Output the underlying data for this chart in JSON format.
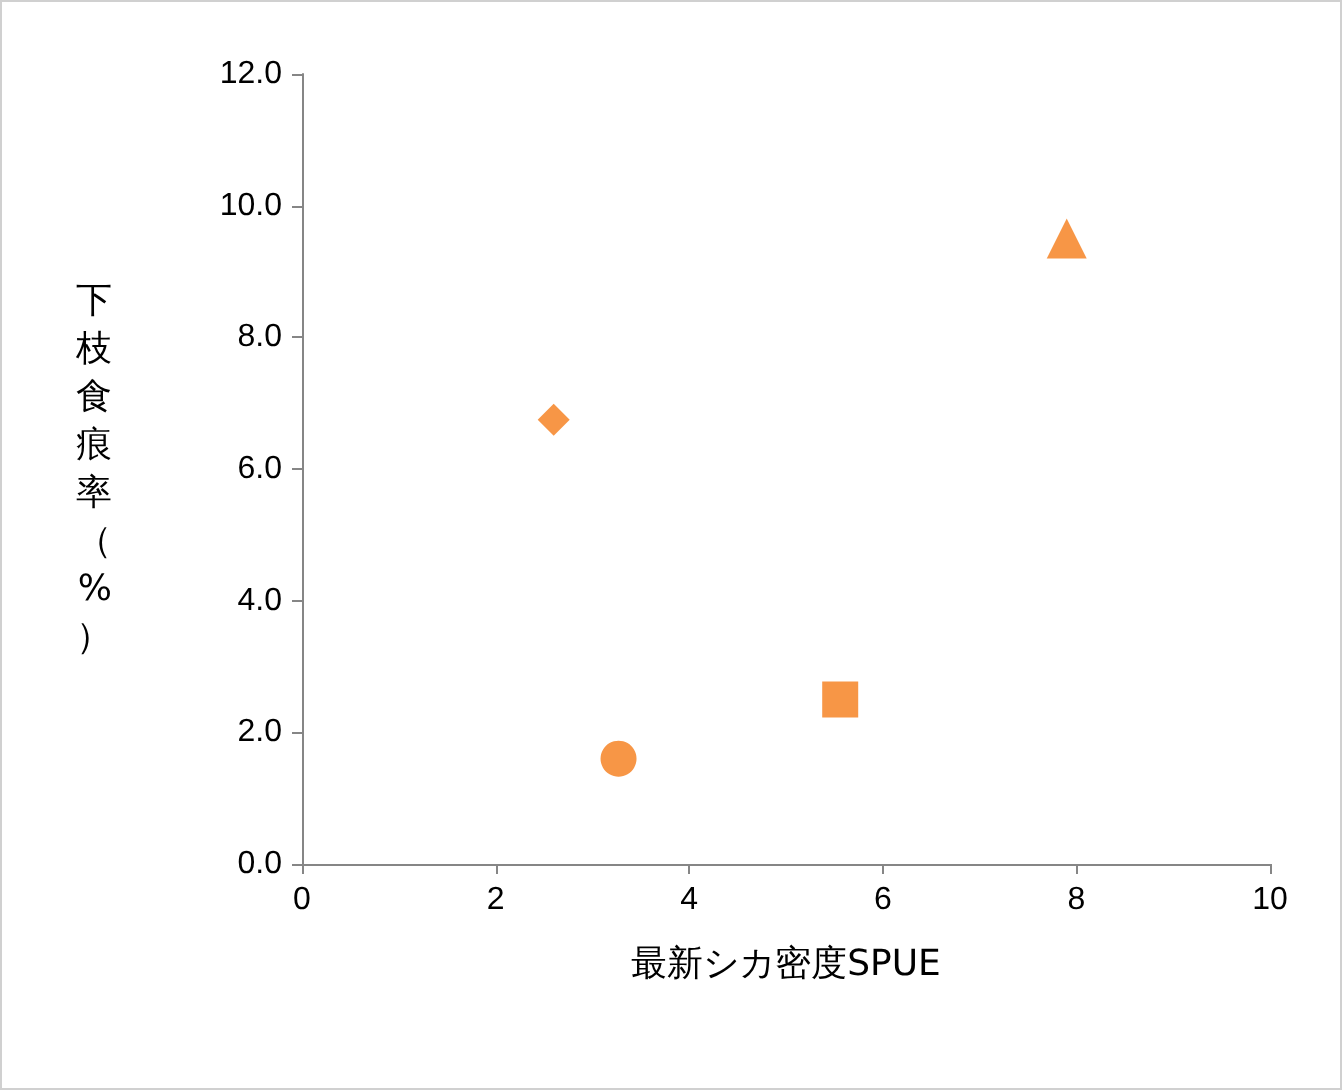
{
  "chart_data": {
    "type": "scatter",
    "xlabel": "最新シカ密度SPUE",
    "ylabel": "下枝食痕率（%）",
    "series": [
      {
        "color": "#f79646",
        "marker": "diamond",
        "x": [
          2.6
        ],
        "values": [
          6.75
        ]
      },
      {
        "color": "#f79646",
        "marker": "circle",
        "x": [
          3.27
        ],
        "values": [
          1.6
        ]
      },
      {
        "color": "#f79646",
        "marker": "square",
        "x": [
          5.56
        ],
        "values": [
          2.5
        ]
      },
      {
        "color": "#f79646",
        "marker": "triangle",
        "x": [
          7.9
        ],
        "values": [
          9.5
        ]
      }
    ],
    "xlim": [
      0,
      10
    ],
    "xticks": [
      0,
      2,
      4,
      6,
      8,
      10
    ],
    "ylim": [
      0,
      12
    ],
    "yticks": [
      {
        "value": 0,
        "label": "0.0"
      },
      {
        "value": 2,
        "label": "2.0"
      },
      {
        "value": 4,
        "label": "4.0"
      },
      {
        "value": 6,
        "label": "6.0"
      },
      {
        "value": 8,
        "label": "8.0"
      },
      {
        "value": 10,
        "label": "10.0"
      },
      {
        "value": 12,
        "label": "12.0"
      }
    ],
    "grid": false
  }
}
